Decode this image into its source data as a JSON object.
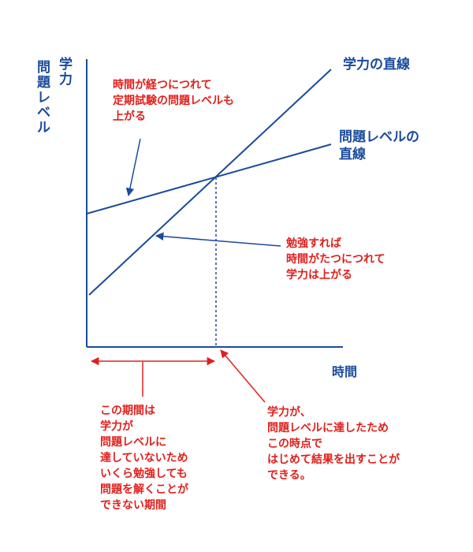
{
  "colors": {
    "blue": "#1a4a9c",
    "red": "#e0201c"
  },
  "y_axis_label_col1": "学力",
  "y_axis_label_col2": "問題レベル",
  "x_axis_label": "時間",
  "line_labels": {
    "ability": "学力の直線",
    "problem_level": [
      "問題レベルの",
      "直線"
    ]
  },
  "annotations": {
    "problem_level_rises": [
      "時間が経つにつれて",
      "定期試験の問題レベルも",
      "上がる"
    ],
    "ability_rises": [
      "勉強すれば",
      "時間がたつにつれて",
      "学力は上がる"
    ],
    "crossing_point": [
      "学力が、",
      "問題レベルに達したため",
      "この時点で",
      "はじめて結果を出すことが",
      "できる。"
    ],
    "period_note": [
      "この期間は",
      "学力が",
      "問題レベルに",
      "達していないため",
      "いくら勉強しても",
      "問題を解くことが",
      "できない期間"
    ]
  }
}
